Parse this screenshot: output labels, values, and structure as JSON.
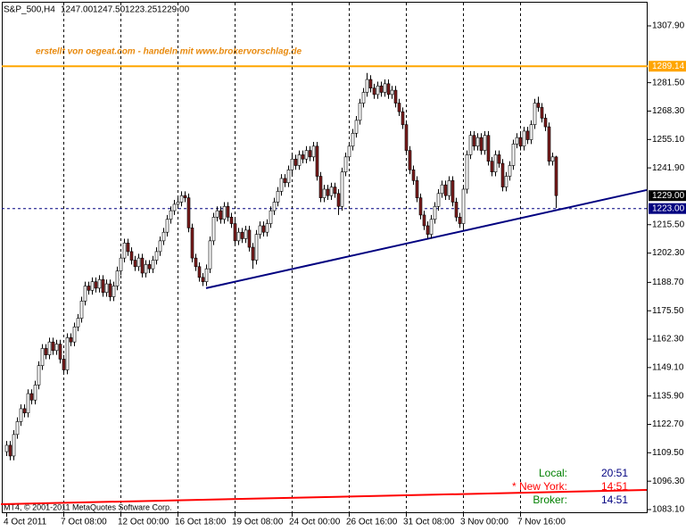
{
  "chart_data": {
    "type": "candlestick",
    "title": "S&P_500,H4",
    "header_values": [
      "1247.00",
      "1247.50",
      "1223.25",
      "1229.00"
    ],
    "annotation": "erstellt von oegeat.com - handeln mit www.brokervorschlag.de",
    "categories": [
      "4 Oct 2011",
      null,
      null,
      null,
      null,
      null,
      null,
      null,
      null,
      null,
      null,
      null,
      null,
      null,
      null,
      null,
      "7 Oct 08:00",
      null,
      null,
      null,
      null,
      null,
      null,
      null,
      null,
      null,
      null,
      null,
      null,
      null,
      null,
      null,
      "12 Oct 00:00",
      null,
      null,
      null,
      null,
      null,
      null,
      null,
      null,
      null,
      null,
      null,
      null,
      null,
      null,
      null,
      "16 Oct 18:00",
      null,
      null,
      null,
      null,
      null,
      null,
      null,
      null,
      null,
      null,
      null,
      null,
      null,
      null,
      null,
      "19 Oct 08:00",
      null,
      null,
      null,
      null,
      null,
      null,
      null,
      null,
      null,
      null,
      null,
      null,
      null,
      null,
      null,
      "24 Oct 00:00",
      null,
      null,
      null,
      null,
      null,
      null,
      null,
      null,
      null,
      null,
      null,
      null,
      null,
      null,
      null,
      "26 Oct 16:00",
      null,
      null,
      null,
      null,
      null,
      null,
      null,
      null,
      null,
      null,
      null,
      null,
      null,
      null,
      null,
      "31 Oct 08:00",
      null,
      null,
      null,
      null,
      null,
      null,
      null,
      null,
      null,
      null,
      null,
      null,
      null,
      null,
      null,
      "3 Nov 00:00",
      null,
      null,
      null,
      null,
      null,
      null,
      null,
      null,
      null,
      null,
      null,
      null,
      null,
      null,
      null,
      "7 Nov 16:00",
      null,
      null,
      null,
      null,
      null,
      null,
      null,
      null,
      null,
      null
    ],
    "open": [
      1110,
      1113,
      1108,
      1118,
      1124,
      1130,
      1128,
      1137,
      1134,
      1141,
      1150,
      1158,
      1155,
      1161,
      1157,
      1160,
      1153,
      1148,
      1163,
      1161,
      1168,
      1172,
      1180,
      1187,
      1185,
      1189,
      1186,
      1190,
      1184,
      1188,
      1182,
      1187,
      1194,
      1200,
      1207,
      1203,
      1199,
      1196,
      1200,
      1193,
      1197,
      1195,
      1199,
      1203,
      1208,
      1212,
      1218,
      1222,
      1225,
      1226,
      1229,
      1228,
      1214,
      1200,
      1196,
      1191,
      1189,
      1195,
      1208,
      1219,
      1222,
      1218,
      1224,
      1219,
      1216,
      1208,
      1212,
      1209,
      1213,
      1205,
      1199,
      1211,
      1215,
      1212,
      1216,
      1222,
      1226,
      1231,
      1237,
      1235,
      1241,
      1246,
      1243,
      1248,
      1246,
      1250,
      1247,
      1252,
      1238,
      1228,
      1232,
      1229,
      1233,
      1230,
      1224,
      1240,
      1247,
      1252,
      1258,
      1264,
      1272,
      1277,
      1283,
      1279,
      1276,
      1280,
      1277,
      1281,
      1276,
      1278,
      1272,
      1268,
      1262,
      1250,
      1241,
      1236,
      1228,
      1220,
      1215,
      1211,
      1218,
      1224,
      1230,
      1234,
      1229,
      1236,
      1226,
      1219,
      1216,
      1232,
      1248,
      1257,
      1252,
      1256,
      1250,
      1257,
      1245,
      1240,
      1248,
      1244,
      1233,
      1238,
      1243,
      1253,
      1256,
      1252,
      1259,
      1255,
      1262,
      1272,
      1270,
      1265,
      1261,
      1245,
      1247
    ],
    "high": [
      1115,
      1115,
      1120,
      1126,
      1132,
      1132,
      1139,
      1139,
      1143,
      1152,
      1160,
      1160,
      1163,
      1163,
      1162,
      1162,
      1155,
      1165,
      1165,
      1170,
      1174,
      1182,
      1189,
      1189,
      1191,
      1191,
      1192,
      1192,
      1190,
      1190,
      1189,
      1196,
      1202,
      1209,
      1209,
      1205,
      1201,
      1202,
      1202,
      1199,
      1199,
      1201,
      1205,
      1210,
      1214,
      1220,
      1224,
      1227,
      1228,
      1231,
      1231,
      1230,
      1216,
      1202,
      1198,
      1193,
      1197,
      1210,
      1221,
      1224,
      1224,
      1226,
      1226,
      1221,
      1218,
      1214,
      1214,
      1215,
      1215,
      1207,
      1213,
      1217,
      1217,
      1218,
      1224,
      1228,
      1233,
      1239,
      1239,
      1243,
      1248,
      1248,
      1250,
      1250,
      1252,
      1252,
      1254,
      1254,
      1240,
      1234,
      1234,
      1235,
      1235,
      1232,
      1242,
      1249,
      1254,
      1260,
      1266,
      1274,
      1279,
      1286,
      1285,
      1281,
      1282,
      1282,
      1283,
      1283,
      1280,
      1280,
      1274,
      1270,
      1264,
      1252,
      1243,
      1238,
      1230,
      1222,
      1217,
      1220,
      1226,
      1232,
      1236,
      1236,
      1238,
      1238,
      1228,
      1221,
      1234,
      1250,
      1259,
      1259,
      1258,
      1258,
      1259,
      1259,
      1247,
      1250,
      1250,
      1246,
      1240,
      1245,
      1255,
      1258,
      1258,
      1261,
      1261,
      1264,
      1274,
      1275,
      1272,
      1267,
      1263,
      1249,
      1247.5
    ],
    "low": [
      1108,
      1106,
      1106,
      1116,
      1122,
      1126,
      1126,
      1132,
      1132,
      1139,
      1148,
      1153,
      1153,
      1155,
      1155,
      1151,
      1146,
      1146,
      1159,
      1159,
      1166,
      1170,
      1178,
      1183,
      1183,
      1184,
      1184,
      1182,
      1182,
      1180,
      1180,
      1185,
      1192,
      1198,
      1201,
      1197,
      1194,
      1194,
      1191,
      1191,
      1193,
      1193,
      1197,
      1201,
      1206,
      1210,
      1216,
      1220,
      1223,
      1224,
      1226,
      1212,
      1198,
      1194,
      1189,
      1187,
      1187,
      1193,
      1206,
      1217,
      1216,
      1216,
      1217,
      1214,
      1206,
      1206,
      1207,
      1207,
      1203,
      1195,
      1197,
      1209,
      1210,
      1210,
      1214,
      1220,
      1224,
      1229,
      1233,
      1233,
      1239,
      1241,
      1241,
      1244,
      1244,
      1245,
      1245,
      1236,
      1226,
      1226,
      1227,
      1227,
      1228,
      1220,
      1222,
      1238,
      1245,
      1250,
      1256,
      1262,
      1270,
      1275,
      1277,
      1274,
      1274,
      1275,
      1275,
      1274,
      1274,
      1270,
      1266,
      1260,
      1248,
      1239,
      1234,
      1226,
      1218,
      1213,
      1209,
      1209,
      1216,
      1222,
      1228,
      1227,
      1227,
      1224,
      1217,
      1214,
      1214,
      1230,
      1246,
      1250,
      1250,
      1248,
      1248,
      1243,
      1238,
      1238,
      1242,
      1231,
      1231,
      1236,
      1241,
      1251,
      1250,
      1250,
      1253,
      1253,
      1260,
      1268,
      1263,
      1259,
      1243,
      1243,
      1223.25
    ],
    "close": [
      1113,
      1108,
      1118,
      1124,
      1130,
      1128,
      1137,
      1134,
      1141,
      1150,
      1158,
      1155,
      1161,
      1157,
      1160,
      1153,
      1148,
      1163,
      1161,
      1168,
      1172,
      1180,
      1187,
      1185,
      1189,
      1186,
      1190,
      1184,
      1188,
      1182,
      1187,
      1194,
      1200,
      1207,
      1203,
      1199,
      1196,
      1200,
      1193,
      1197,
      1195,
      1199,
      1203,
      1208,
      1212,
      1218,
      1222,
      1225,
      1226,
      1229,
      1228,
      1214,
      1200,
      1196,
      1191,
      1189,
      1195,
      1208,
      1219,
      1222,
      1218,
      1224,
      1219,
      1216,
      1208,
      1212,
      1209,
      1213,
      1205,
      1199,
      1211,
      1215,
      1212,
      1216,
      1222,
      1226,
      1231,
      1237,
      1235,
      1241,
      1246,
      1243,
      1248,
      1246,
      1250,
      1247,
      1252,
      1238,
      1228,
      1232,
      1229,
      1233,
      1230,
      1224,
      1240,
      1247,
      1252,
      1258,
      1264,
      1272,
      1277,
      1283,
      1279,
      1276,
      1280,
      1277,
      1281,
      1276,
      1278,
      1272,
      1268,
      1262,
      1250,
      1241,
      1236,
      1228,
      1220,
      1215,
      1211,
      1218,
      1224,
      1230,
      1234,
      1229,
      1236,
      1226,
      1219,
      1216,
      1232,
      1248,
      1257,
      1252,
      1256,
      1250,
      1257,
      1245,
      1240,
      1248,
      1244,
      1233,
      1238,
      1243,
      1253,
      1256,
      1252,
      1259,
      1255,
      1262,
      1272,
      1270,
      1265,
      1261,
      1245,
      1247,
      1229
    ],
    "up_color": "#ffffff",
    "down_color": "#7a1c1c",
    "ylim": [
      1081.44,
      1318.68
    ],
    "yticks": [
      {
        "value": 1307.9,
        "label": "1307.90"
      },
      {
        "value": 1281.5,
        "label": "1281.50"
      },
      {
        "value": 1268.3,
        "label": "1268.30"
      },
      {
        "value": 1255.1,
        "label": "1255.10"
      },
      {
        "value": 1241.9,
        "label": "1241.90"
      },
      {
        "value": 1215.5,
        "label": "1215.50"
      },
      {
        "value": 1202.3,
        "label": "1202.30"
      },
      {
        "value": 1188.7,
        "label": "1188.70"
      },
      {
        "value": 1175.5,
        "label": "1175.50"
      },
      {
        "value": 1162.3,
        "label": "1162.30"
      },
      {
        "value": 1149.1,
        "label": "1149.10"
      },
      {
        "value": 1135.9,
        "label": "1135.90"
      },
      {
        "value": 1122.7,
        "label": "1122.70"
      },
      {
        "value": 1109.5,
        "label": "1109.50"
      },
      {
        "value": 1096.3,
        "label": "1096.30"
      },
      {
        "value": 1083.1,
        "label": "1083.10"
      }
    ],
    "grid": true,
    "price_lines": [
      {
        "value": 1289.14,
        "label": "1289.14",
        "color": "#ffa500",
        "style": "solid"
      },
      {
        "value": 1229,
        "label": "1229.00",
        "color": "#000000",
        "style": "none"
      },
      {
        "value": 1223,
        "label": "1223.00",
        "color": "#000080",
        "style": "dashed"
      }
    ],
    "trendlines": [
      {
        "x": [
          56,
          179.5
        ],
        "y": [
          1186,
          1231.6
        ],
        "color": "#000080"
      },
      {
        "x": [
          -1.5,
          179.5
        ],
        "y": [
          1085.6,
          1092.2
        ],
        "color": "#ff0000"
      }
    ],
    "copyright": "MT4, © 2001-2011 MetaQuotes Software Corp.",
    "clock": [
      {
        "label": "Local:",
        "time": "20:51"
      },
      {
        "label": "* New York:",
        "time": "14:51"
      },
      {
        "label": "Broker:",
        "time": "14:51"
      }
    ]
  }
}
